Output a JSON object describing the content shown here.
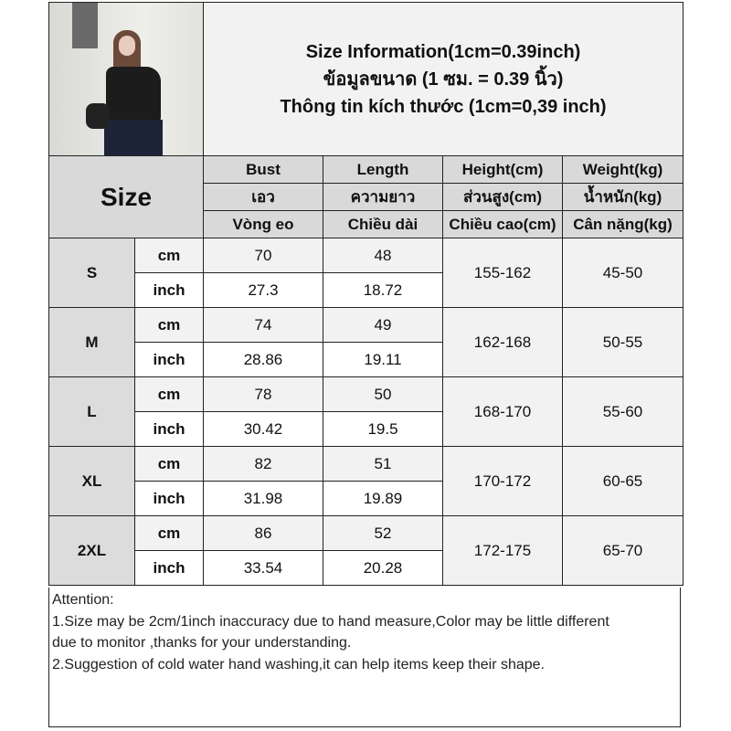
{
  "title_lines": [
    "Size Information(1cm=0.39inch)",
    "ข้อมูลขนาด (1 ซม. = 0.39 นิ้ว)",
    "Thông tin kích thước (1cm=0,39 inch)"
  ],
  "size_header": "Size",
  "columns": [
    [
      "Bust",
      "เอว",
      "Vòng eo"
    ],
    [
      "Length",
      "ความยาว",
      "Chiều dài"
    ],
    [
      "Height(cm)",
      "ส่วนสูง(cm)",
      "Chiều cao(cm)"
    ],
    [
      "Weight(kg)",
      "น้ำหนัก(kg)",
      "Cân nặng(kg)"
    ]
  ],
  "unit_labels": {
    "cm": "cm",
    "inch": "inch"
  },
  "rows": [
    {
      "size": "S",
      "bust_cm": "70",
      "length_cm": "48",
      "bust_in": "27.3",
      "length_in": "18.72",
      "height": "155-162",
      "weight": "45-50"
    },
    {
      "size": "M",
      "bust_cm": "74",
      "length_cm": "49",
      "bust_in": "28.86",
      "length_in": "19.11",
      "height": "162-168",
      "weight": "50-55"
    },
    {
      "size": "L",
      "bust_cm": "78",
      "length_cm": "50",
      "bust_in": "30.42",
      "length_in": "19.5",
      "height": "168-170",
      "weight": "55-60"
    },
    {
      "size": "XL",
      "bust_cm": "82",
      "length_cm": "51",
      "bust_in": "31.98",
      "length_in": "19.89",
      "height": "170-172",
      "weight": "60-65"
    },
    {
      "size": "2XL",
      "bust_cm": "86",
      "length_cm": "52",
      "bust_in": "33.54",
      "length_in": "20.28",
      "height": "172-175",
      "weight": "65-70"
    }
  ],
  "notes": [
    "Attention:",
    "1.Size may be 2cm/1inch inaccuracy due to hand measure,Color may be little different",
    "due to monitor ,thanks for your understanding.",
    "2.Suggestion of cold water hand washing,it can help items keep their shape."
  ]
}
